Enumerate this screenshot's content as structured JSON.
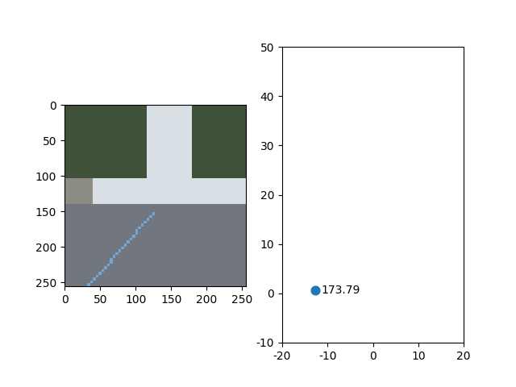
{
  "chart_data": [
    {
      "type": "image",
      "xlim": [
        -0.5,
        255.5
      ],
      "ylim": [
        255.5,
        -0.5
      ],
      "xticks": [
        0,
        50,
        100,
        150,
        200,
        250
      ],
      "yticks": [
        0,
        50,
        100,
        150,
        200,
        250
      ]
    },
    {
      "type": "scatter",
      "x": [
        -12.8
      ],
      "y": [
        0.6
      ],
      "labels": [
        "173.79"
      ],
      "color": "#1f77b4",
      "xlim": [
        -20,
        20
      ],
      "ylim": [
        -10,
        50
      ],
      "xticks": [
        -20,
        -10,
        0,
        10,
        20
      ],
      "yticks": [
        -10,
        0,
        10,
        20,
        30,
        40,
        50
      ]
    }
  ]
}
